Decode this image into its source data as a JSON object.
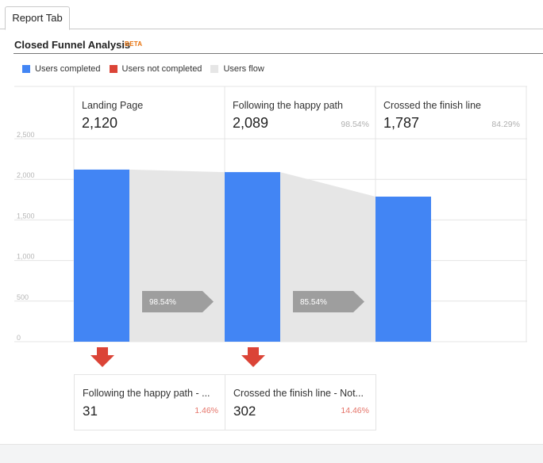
{
  "tab": {
    "label": "Report Tab"
  },
  "section": {
    "title": "Closed Funnel Analysis",
    "badge": "BETA"
  },
  "legend": [
    {
      "label": "Users completed",
      "color": "#4285f4"
    },
    {
      "label": "Users not completed",
      "color": "#db4437"
    },
    {
      "label": "Users flow",
      "color": "#e6e6e6"
    }
  ],
  "chart_data": {
    "type": "bar",
    "subtype": "funnel",
    "title": "",
    "xlabel": "",
    "ylabel": "",
    "ylim": [
      0,
      2500
    ],
    "yticks": [
      0,
      500,
      1000,
      1500,
      2000,
      2500
    ],
    "ytick_labels": [
      "0",
      "500",
      "1,000",
      "1,500",
      "2,000",
      "2,500"
    ],
    "grid": true,
    "categories": [
      "Landing Page",
      "Following the happy path",
      "Crossed the finish line"
    ],
    "series": [
      {
        "name": "Users completed",
        "color": "#4285f4",
        "values": [
          2120,
          2089,
          1787
        ]
      }
    ],
    "step_values_text": [
      "2,120",
      "2,089",
      "1,787"
    ],
    "step_percents": [
      "",
      "98.54%",
      "84.29%"
    ],
    "flow_percents": [
      "98.54%",
      "85.54%"
    ],
    "flow_color": "#e6e6e6",
    "dropoffs": [
      {
        "label": "Following the happy path - ...",
        "value": 31,
        "value_text": "31",
        "percent": "1.46%"
      },
      {
        "label": "Crossed the finish line - Not...",
        "value": 302,
        "value_text": "302",
        "percent": "14.46%"
      }
    ],
    "dropoff_color": "#db4437"
  }
}
